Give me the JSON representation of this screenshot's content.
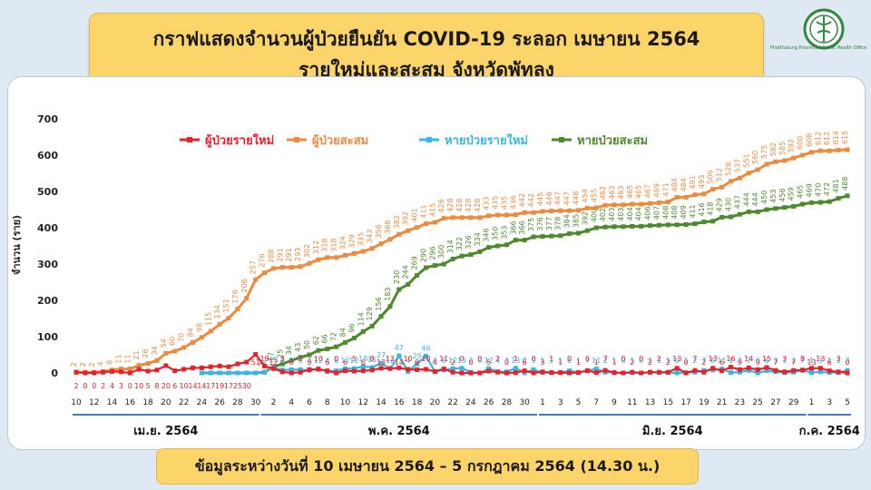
{
  "header": {
    "title_line1": "กราฟแสดงจำนวนผู้ป่วยยืนยัน COVID-19 ระลอก เมษายน 2564",
    "title_line2": "รายใหม่และสะสม จังหวัดพัทลุง",
    "org_name": "Phatthalung Provincial Public Health Office"
  },
  "footer": {
    "note": "ข้อมูลระหว่างวันที่ 10 เมษายน 2564 – 5 กรกฎาคม 2564 (14.30 น.)"
  },
  "colors": {
    "new_cases": "#e8202a",
    "cumulative_cases": "#ee8a3c",
    "new_recovered": "#36b6e6",
    "cumulative_recovered": "#4d8a2c"
  },
  "chart_data": {
    "type": "line",
    "title": "",
    "ylabel": "จำนวน (ราย)",
    "ylim": [
      0,
      700
    ],
    "yticks": [
      0,
      100,
      200,
      300,
      400,
      500,
      600,
      700
    ],
    "legend_position": "top",
    "grid": false,
    "months": [
      {
        "label": "เม.ย. 2564",
        "start": 0,
        "end": 20
      },
      {
        "label": "พ.ค. 2564",
        "start": 21,
        "end": 51
      },
      {
        "label": "มิ.ย. 2564",
        "start": 52,
        "end": 81
      },
      {
        "label": "ก.ค. 2564",
        "start": 82,
        "end": 86
      }
    ],
    "x": [
      "10",
      "11",
      "12",
      "13",
      "14",
      "15",
      "16",
      "17",
      "18",
      "19",
      "20",
      "21",
      "22",
      "23",
      "24",
      "25",
      "26",
      "27",
      "28",
      "29",
      "30",
      "1",
      "2",
      "3",
      "4",
      "5",
      "6",
      "7",
      "8",
      "9",
      "10",
      "11",
      "12",
      "13",
      "14",
      "15",
      "16",
      "17",
      "18",
      "19",
      "20",
      "21",
      "22",
      "23",
      "24",
      "25",
      "26",
      "27",
      "28",
      "29",
      "30",
      "31",
      "1",
      "2",
      "3",
      "4",
      "5",
      "6",
      "7",
      "8",
      "9",
      "10",
      "11",
      "12",
      "13",
      "14",
      "15",
      "16",
      "17",
      "18",
      "19",
      "20",
      "21",
      "22",
      "23",
      "24",
      "25",
      "26",
      "27",
      "28",
      "29",
      "30",
      "1",
      "2",
      "3",
      "4",
      "5"
    ],
    "x_tick_labels": [
      "10",
      "12",
      "14",
      "16",
      "18",
      "20",
      "22",
      "24",
      "26",
      "28",
      "30",
      "2",
      "4",
      "6",
      "8",
      "10",
      "12",
      "14",
      "16",
      "18",
      "20",
      "22",
      "24",
      "26",
      "28",
      "30",
      "1",
      "3",
      "5",
      "7",
      "9",
      "11",
      "13",
      "15",
      "17",
      "19",
      "21",
      "23",
      "25",
      "27",
      "29",
      "1",
      "3",
      "5"
    ],
    "series": [
      {
        "name": "ผู้ป่วยรายใหม่",
        "key": "new_cases",
        "values": [
          2,
          0,
          0,
          2,
          4,
          3,
          0,
          10,
          5,
          8,
          20,
          6,
          10,
          14,
          14,
          17,
          19,
          17,
          25,
          30,
          51,
          19,
          12,
          3,
          0,
          2,
          9,
          10,
          6,
          0,
          6,
          5,
          6,
          8,
          13,
          12,
          14,
          10,
          9,
          10,
          4,
          11,
          2,
          0,
          0,
          0,
          5,
          2,
          0,
          1,
          6,
          0,
          3,
          1,
          1,
          0,
          1,
          6,
          1,
          7,
          1,
          0,
          2,
          0,
          2,
          2,
          2,
          13,
          0,
          7,
          2,
          13,
          6,
          16,
          9,
          14,
          9,
          15,
          7,
          3,
          7,
          8,
          13,
          13,
          6,
          3,
          0
        ]
      },
      {
        "name": "ผู้ป่วยสะสม",
        "key": "cumulative_cases",
        "values": [
          2,
          2,
          2,
          4,
          8,
          11,
          11,
          21,
          26,
          34,
          54,
          60,
          70,
          84,
          98,
          115,
          134,
          151,
          176,
          206,
          257,
          276,
          288,
          291,
          291,
          293,
          302,
          312,
          318,
          318,
          324,
          329,
          335,
          343,
          356,
          368,
          382,
          392,
          401,
          411,
          415,
          426,
          428,
          428,
          428,
          428,
          433,
          435,
          435,
          436,
          442,
          442,
          445,
          446,
          447,
          447,
          448,
          454,
          455,
          462,
          463,
          463,
          465,
          465,
          467,
          469,
          471,
          484,
          484,
          491,
          493,
          506,
          512,
          528,
          537,
          551,
          560,
          575,
          582,
          585,
          592,
          600,
          608,
          612,
          612,
          614,
          615
        ]
      },
      {
        "name": "หายป่วยรายใหม่",
        "key": "new_recovered",
        "values": [
          0,
          0,
          0,
          0,
          0,
          0,
          0,
          0,
          0,
          0,
          0,
          0,
          0,
          0,
          0,
          0,
          0,
          0,
          0,
          0,
          0,
          2,
          15,
          8,
          9,
          9,
          7,
          12,
          4,
          6,
          12,
          12,
          18,
          15,
          27,
          12,
          47,
          4,
          25,
          46,
          4,
          8,
          12,
          13,
          2,
          0,
          12,
          4,
          3,
          13,
          0,
          9,
          1,
          1,
          1,
          6,
          1,
          7,
          11,
          2,
          1,
          0,
          1,
          0,
          2,
          1,
          1,
          0,
          1,
          2,
          7,
          8,
          11,
          1,
          2,
          7,
          0,
          6,
          3,
          1,
          2,
          7,
          1,
          3,
          1,
          1,
          7
        ]
      },
      {
        "name": "หายป่วยสะสม",
        "key": "cumulative_recovered",
        "values": [
          0,
          0,
          0,
          0,
          0,
          0,
          0,
          0,
          0,
          0,
          0,
          0,
          0,
          0,
          0,
          0,
          0,
          0,
          0,
          0,
          0,
          2,
          17,
          25,
          34,
          43,
          50,
          62,
          66,
          72,
          84,
          96,
          114,
          129,
          156,
          183,
          230,
          244,
          269,
          290,
          296,
          300,
          314,
          322,
          326,
          334,
          346,
          350,
          353,
          366,
          366,
          375,
          376,
          377,
          378,
          384,
          385,
          392,
          400,
          402,
          403,
          403,
          404,
          404,
          406,
          407,
          408,
          408,
          409,
          411,
          416,
          418,
          429,
          430,
          437,
          444,
          444,
          450,
          453,
          456,
          459,
          465,
          469,
          470,
          472,
          481,
          488
        ]
      }
    ]
  }
}
